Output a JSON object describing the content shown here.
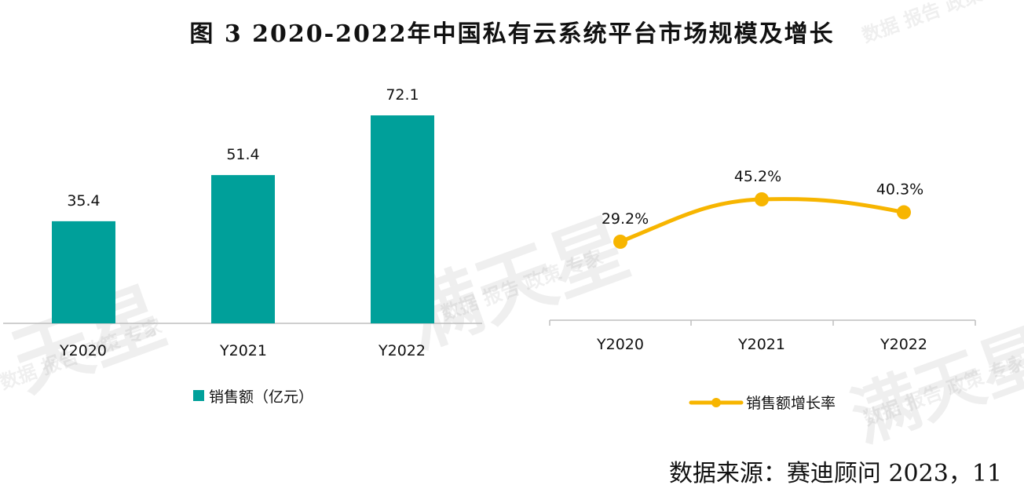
{
  "title": "图 3   2020-2022年中国私有云系统平台市场规模及增长",
  "source": "数据来源：赛迪顾问   2023，11",
  "watermark": {
    "brand": "满天星",
    "brand_short": "天星",
    "tagline": "数据 报告 政策 专家"
  },
  "colors": {
    "bar": "#00A09A",
    "line": "#F7B500",
    "axis": "#BFBFBF"
  },
  "chart_data": [
    {
      "type": "bar",
      "categories": [
        "Y2020",
        "Y2021",
        "Y2022"
      ],
      "series": [
        {
          "name": "销售额（亿元）",
          "values": [
            35.4,
            51.4,
            72.1
          ],
          "labels": [
            "35.4",
            "51.4",
            "72.1"
          ]
        }
      ],
      "ylim": [
        0,
        72.1
      ],
      "legend": "bottom"
    },
    {
      "type": "line",
      "categories": [
        "Y2020",
        "Y2021",
        "Y2022"
      ],
      "series": [
        {
          "name": "销售额增长率",
          "values": [
            29.2,
            45.2,
            40.3
          ],
          "labels": [
            "29.2%",
            "45.2%",
            "40.3%"
          ]
        }
      ],
      "legend": "bottom"
    }
  ]
}
